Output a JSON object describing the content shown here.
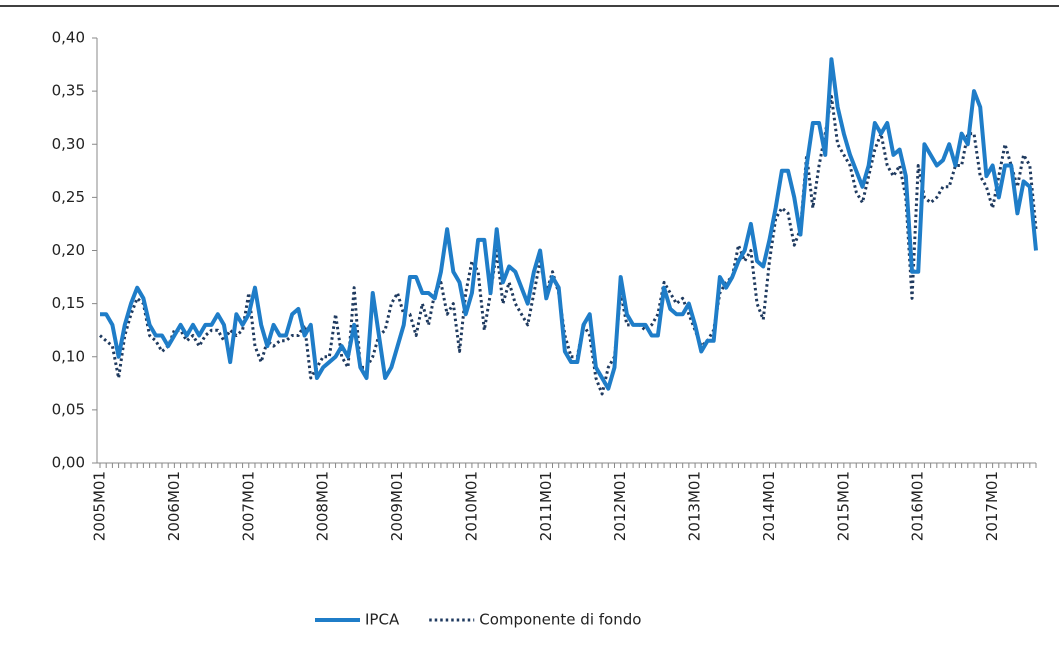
{
  "chart_data": {
    "type": "line",
    "categories": [
      "2005M01",
      null,
      null,
      null,
      null,
      null,
      null,
      null,
      null,
      null,
      null,
      null,
      "2006M01",
      null,
      null,
      null,
      null,
      null,
      null,
      null,
      null,
      null,
      null,
      null,
      "2007M01",
      null,
      null,
      null,
      null,
      null,
      null,
      null,
      null,
      null,
      null,
      null,
      "2008M01",
      null,
      null,
      null,
      null,
      null,
      null,
      null,
      null,
      null,
      null,
      null,
      "2009M01",
      null,
      null,
      null,
      null,
      null,
      null,
      null,
      null,
      null,
      null,
      null,
      "2010M01",
      null,
      null,
      null,
      null,
      null,
      null,
      null,
      null,
      null,
      null,
      null,
      "2011M01",
      null,
      null,
      null,
      null,
      null,
      null,
      null,
      null,
      null,
      null,
      null,
      "2012M01",
      null,
      null,
      null,
      null,
      null,
      null,
      null,
      null,
      null,
      null,
      null,
      "2013M01",
      null,
      null,
      null,
      null,
      null,
      null,
      null,
      null,
      null,
      null,
      null,
      "2014M01",
      null,
      null,
      null,
      null,
      null,
      null,
      null,
      null,
      null,
      null,
      null,
      "2015M01",
      null,
      null,
      null,
      null,
      null,
      null,
      null,
      null,
      null,
      null,
      null,
      "2016M01",
      null,
      null,
      null,
      null,
      null,
      null,
      null,
      null,
      null,
      null,
      null,
      "2017M01",
      null,
      null,
      null,
      null,
      null,
      null,
      null
    ],
    "series": [
      {
        "name": "IPCA",
        "color": "#1f7dc8",
        "style": "solid",
        "values": [
          0.14,
          0.14,
          0.13,
          0.1,
          0.13,
          0.15,
          0.165,
          0.155,
          0.13,
          0.12,
          0.12,
          0.11,
          0.12,
          0.13,
          0.12,
          0.13,
          0.12,
          0.13,
          0.13,
          0.14,
          0.13,
          0.095,
          0.14,
          0.13,
          0.14,
          0.165,
          0.13,
          0.11,
          0.13,
          0.12,
          0.12,
          0.14,
          0.145,
          0.12,
          0.13,
          0.08,
          0.09,
          0.095,
          0.1,
          0.11,
          0.1,
          0.13,
          0.09,
          0.08,
          0.16,
          0.12,
          0.08,
          0.09,
          0.11,
          0.13,
          0.175,
          0.175,
          0.16,
          0.16,
          0.155,
          0.18,
          0.22,
          0.18,
          0.17,
          0.14,
          0.16,
          0.21,
          0.21,
          0.16,
          0.22,
          0.17,
          0.185,
          0.18,
          0.165,
          0.15,
          0.18,
          0.2,
          0.155,
          0.175,
          0.165,
          0.105,
          0.095,
          0.095,
          0.13,
          0.14,
          0.09,
          0.08,
          0.07,
          0.09,
          0.175,
          0.14,
          0.13,
          0.13,
          0.13,
          0.12,
          0.12,
          0.165,
          0.145,
          0.14,
          0.14,
          0.15,
          0.13,
          0.105,
          0.115,
          0.115,
          0.175,
          0.165,
          0.175,
          0.19,
          0.2,
          0.225,
          0.19,
          0.185,
          0.21,
          0.24,
          0.275,
          0.275,
          0.25,
          0.215,
          0.28,
          0.32,
          0.32,
          0.29,
          0.38,
          0.335,
          0.31,
          0.29,
          0.275,
          0.26,
          0.28,
          0.32,
          0.31,
          0.32,
          0.29,
          0.295,
          0.27,
          0.18,
          0.18,
          0.3,
          0.29,
          0.28,
          0.285,
          0.3,
          0.28,
          0.31,
          0.3,
          0.35,
          0.335,
          0.27,
          0.28,
          0.25,
          0.28,
          0.28,
          0.235,
          0.265,
          0.26,
          0.2
        ]
      },
      {
        "name": "Componente di fondo",
        "color": "#1f3a5f",
        "style": "dotted",
        "values": [
          0.12,
          0.115,
          0.11,
          0.08,
          0.12,
          0.14,
          0.155,
          0.15,
          0.12,
          0.115,
          0.105,
          0.11,
          0.125,
          0.125,
          0.115,
          0.12,
          0.11,
          0.12,
          0.125,
          0.125,
          0.115,
          0.125,
          0.12,
          0.125,
          0.16,
          0.11,
          0.095,
          0.115,
          0.11,
          0.115,
          0.115,
          0.12,
          0.12,
          0.13,
          0.08,
          0.09,
          0.1,
          0.1,
          0.14,
          0.1,
          0.09,
          0.165,
          0.09,
          0.09,
          0.1,
          0.12,
          0.125,
          0.15,
          0.16,
          0.14,
          0.14,
          0.12,
          0.15,
          0.13,
          0.16,
          0.17,
          0.14,
          0.15,
          0.105,
          0.16,
          0.19,
          0.18,
          0.125,
          0.16,
          0.2,
          0.15,
          0.17,
          0.15,
          0.14,
          0.13,
          0.16,
          0.19,
          0.16,
          0.18,
          0.16,
          0.12,
          0.1,
          0.1,
          0.13,
          0.12,
          0.08,
          0.065,
          0.09,
          0.1,
          0.16,
          0.13,
          0.13,
          0.13,
          0.125,
          0.13,
          0.14,
          0.17,
          0.16,
          0.15,
          0.155,
          0.14,
          0.125,
          0.11,
          0.115,
          0.125,
          0.16,
          0.17,
          0.175,
          0.205,
          0.19,
          0.2,
          0.15,
          0.135,
          0.19,
          0.23,
          0.24,
          0.235,
          0.205,
          0.22,
          0.29,
          0.24,
          0.28,
          0.31,
          0.345,
          0.3,
          0.29,
          0.28,
          0.255,
          0.245,
          0.27,
          0.295,
          0.31,
          0.28,
          0.27,
          0.28,
          0.25,
          0.155,
          0.28,
          0.25,
          0.245,
          0.25,
          0.26,
          0.26,
          0.28,
          0.28,
          0.31,
          0.31,
          0.27,
          0.26,
          0.24,
          0.27,
          0.3,
          0.28,
          0.26,
          0.29,
          0.28,
          0.22
        ]
      }
    ],
    "ylim": [
      0,
      0.4
    ],
    "yticks": [
      {
        "value": 0,
        "label": "0,00"
      },
      {
        "value": 0.05,
        "label": "0,05"
      },
      {
        "value": 0.1,
        "label": "0,10"
      },
      {
        "value": 0.15,
        "label": "0,15"
      },
      {
        "value": 0.2,
        "label": "0,20"
      },
      {
        "value": 0.25,
        "label": "0,25"
      },
      {
        "value": 0.3,
        "label": "0,30"
      },
      {
        "value": 0.35,
        "label": "0,35"
      },
      {
        "value": 0.4,
        "label": "0,40"
      }
    ],
    "grid": false,
    "legend": "bottom"
  }
}
